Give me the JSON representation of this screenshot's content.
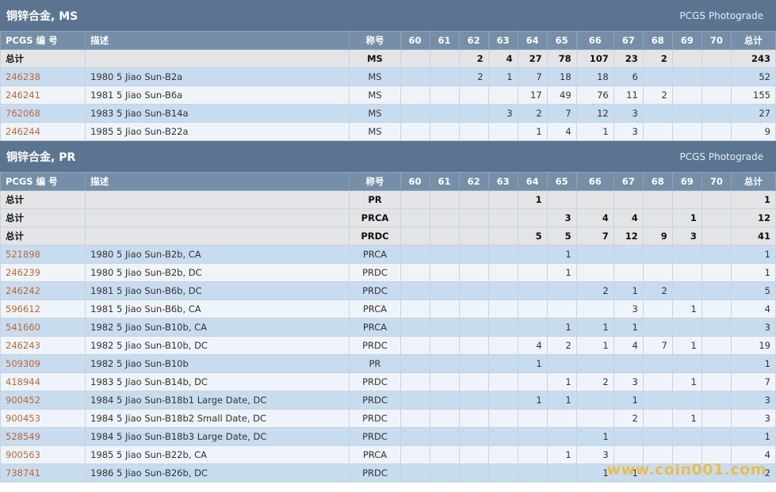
{
  "columns": [
    "PCGS 编 号",
    "描述",
    "称号",
    "60",
    "61",
    "62",
    "63",
    "64",
    "65",
    "66",
    "67",
    "68",
    "69",
    "70",
    "总计"
  ],
  "sections": [
    {
      "title": "铜锌合金, MS",
      "subtitle": "PCGS Photograde",
      "totals": [
        {
          "label": "总计",
          "designation": "MS",
          "counts": [
            "",
            "",
            "2",
            "4",
            "27",
            "78",
            "107",
            "23",
            "2",
            "",
            ""
          ],
          "total": "243"
        }
      ],
      "rows": [
        {
          "code": "246238",
          "desc": "1980 5 Jiao Sun-B2a",
          "designation": "MS",
          "counts": [
            "",
            "",
            "2",
            "1",
            "7",
            "18",
            "18",
            "6",
            "",
            "",
            ""
          ],
          "total": "52"
        },
        {
          "code": "246241",
          "desc": "1981 5 Jiao Sun-B6a",
          "designation": "MS",
          "counts": [
            "",
            "",
            "",
            "",
            "17",
            "49",
            "76",
            "11",
            "2",
            "",
            ""
          ],
          "total": "155"
        },
        {
          "code": "762068",
          "desc": "1983 5 Jiao Sun-B14a",
          "designation": "MS",
          "counts": [
            "",
            "",
            "",
            "3",
            "2",
            "7",
            "12",
            "3",
            "",
            "",
            ""
          ],
          "total": "27"
        },
        {
          "code": "246244",
          "desc": "1985 5 Jiao Sun-B22a",
          "designation": "MS",
          "counts": [
            "",
            "",
            "",
            "",
            "1",
            "4",
            "1",
            "3",
            "",
            "",
            ""
          ],
          "total": "9"
        }
      ]
    },
    {
      "title": "铜锌合金, PR",
      "subtitle": "PCGS Photograde",
      "totals": [
        {
          "label": "总计",
          "designation": "PR",
          "counts": [
            "",
            "",
            "",
            "",
            "1",
            "",
            "",
            "",
            "",
            "",
            ""
          ],
          "total": "1"
        },
        {
          "label": "总计",
          "designation": "PRCA",
          "counts": [
            "",
            "",
            "",
            "",
            "",
            "3",
            "4",
            "4",
            "",
            "1",
            ""
          ],
          "total": "12"
        },
        {
          "label": "总计",
          "designation": "PRDC",
          "counts": [
            "",
            "",
            "",
            "",
            "5",
            "5",
            "7",
            "12",
            "9",
            "3",
            ""
          ],
          "total": "41"
        }
      ],
      "rows": [
        {
          "code": "521898",
          "desc": "1980 5 Jiao Sun-B2b, CA",
          "designation": "PRCA",
          "counts": [
            "",
            "",
            "",
            "",
            "",
            "1",
            "",
            "",
            "",
            "",
            ""
          ],
          "total": "1"
        },
        {
          "code": "246239",
          "desc": "1980 5 Jiao Sun-B2b, DC",
          "designation": "PRDC",
          "counts": [
            "",
            "",
            "",
            "",
            "",
            "1",
            "",
            "",
            "",
            "",
            ""
          ],
          "total": "1"
        },
        {
          "code": "246242",
          "desc": "1981 5 Jiao Sun-B6b, DC",
          "designation": "PRDC",
          "counts": [
            "",
            "",
            "",
            "",
            "",
            "",
            "2",
            "1",
            "2",
            "",
            ""
          ],
          "total": "5"
        },
        {
          "code": "596612",
          "desc": "1981 5 Jiao Sun-B6b, CA",
          "designation": "PRCA",
          "counts": [
            "",
            "",
            "",
            "",
            "",
            "",
            "",
            "3",
            "",
            "1",
            ""
          ],
          "total": "4"
        },
        {
          "code": "541660",
          "desc": "1982 5 Jiao Sun-B10b, CA",
          "designation": "PRCA",
          "counts": [
            "",
            "",
            "",
            "",
            "",
            "1",
            "1",
            "1",
            "",
            "",
            ""
          ],
          "total": "3"
        },
        {
          "code": "246243",
          "desc": "1982 5 Jiao Sun-B10b, DC",
          "designation": "PRDC",
          "counts": [
            "",
            "",
            "",
            "",
            "4",
            "2",
            "1",
            "4",
            "7",
            "1",
            ""
          ],
          "total": "19"
        },
        {
          "code": "509309",
          "desc": "1982 5 Jiao Sun-B10b",
          "designation": "PR",
          "counts": [
            "",
            "",
            "",
            "",
            "1",
            "",
            "",
            "",
            "",
            "",
            ""
          ],
          "total": "1"
        },
        {
          "code": "418944",
          "desc": "1983 5 Jiao Sun-B14b, DC",
          "designation": "PRDC",
          "counts": [
            "",
            "",
            "",
            "",
            "",
            "1",
            "2",
            "3",
            "",
            "1",
            ""
          ],
          "total": "7"
        },
        {
          "code": "900452",
          "desc": "1984 5 Jiao Sun-B18b1 Large Date, DC",
          "designation": "PRDC",
          "counts": [
            "",
            "",
            "",
            "",
            "1",
            "1",
            "",
            "1",
            "",
            "",
            ""
          ],
          "total": "3"
        },
        {
          "code": "900453",
          "desc": "1984 5 Jiao Sun-B18b2 Small Date, DC",
          "designation": "PRDC",
          "counts": [
            "",
            "",
            "",
            "",
            "",
            "",
            "",
            "2",
            "",
            "1",
            ""
          ],
          "total": "3"
        },
        {
          "code": "528549",
          "desc": "1984 5 Jiao Sun-B18b3 Large Date, DC",
          "designation": "PRDC",
          "counts": [
            "",
            "",
            "",
            "",
            "",
            "",
            "1",
            "",
            "",
            "",
            ""
          ],
          "total": "1"
        },
        {
          "code": "900563",
          "desc": "1985 5 Jiao Sun-B22b, CA",
          "designation": "PRCA",
          "counts": [
            "",
            "",
            "",
            "",
            "",
            "1",
            "3",
            "",
            "",
            "",
            ""
          ],
          "total": "4"
        },
        {
          "code": "738741",
          "desc": "1986 5 Jiao Sun-B26b, DC",
          "designation": "PRDC",
          "counts": [
            "",
            "",
            "",
            "",
            "",
            "",
            "1",
            "1",
            "",
            "",
            ""
          ],
          "total": "2"
        }
      ]
    }
  ],
  "watermark": "www.coin001.com"
}
